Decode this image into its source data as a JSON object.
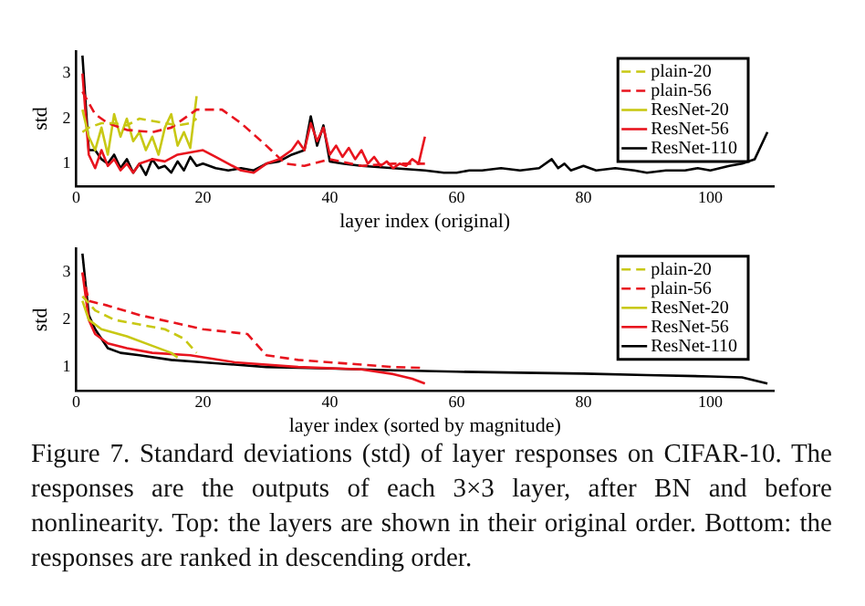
{
  "chart_data": [
    {
      "type": "line",
      "xlabel": "layer index (original)",
      "ylabel": "std",
      "xlim": [
        0,
        110
      ],
      "xticks": [
        0,
        20,
        40,
        60,
        80,
        100
      ],
      "ylim": [
        0.5,
        3.5
      ],
      "yticks": [
        1,
        2,
        3
      ],
      "grid": false,
      "legend": "top right",
      "marker": "none",
      "series": [
        {
          "name": "plain-20",
          "color": "#c8c814",
          "line_style": "dashed",
          "x": [
            1,
            2,
            4,
            6,
            8,
            10,
            12,
            14,
            16,
            18,
            19
          ],
          "values": [
            1.7,
            1.8,
            1.9,
            1.9,
            1.85,
            2.0,
            1.95,
            1.9,
            1.85,
            1.9,
            2.0
          ]
        },
        {
          "name": "plain-56",
          "color": "#e8141e",
          "line_style": "dashed",
          "x": [
            1,
            3,
            5,
            8,
            12,
            15,
            19,
            21,
            23,
            26,
            30,
            33,
            36,
            40,
            45,
            50,
            55
          ],
          "values": [
            2.6,
            2.1,
            1.9,
            1.75,
            1.7,
            1.8,
            2.2,
            2.2,
            2.2,
            1.9,
            1.4,
            1.0,
            0.95,
            1.1,
            0.95,
            1.0,
            1.0
          ]
        },
        {
          "name": "ResNet-20",
          "color": "#c8c814",
          "line_style": "solid",
          "x": [
            1,
            2,
            3,
            4,
            5,
            6,
            7,
            8,
            9,
            10,
            11,
            12,
            13,
            14,
            15,
            16,
            17,
            18,
            19
          ],
          "values": [
            2.2,
            1.6,
            1.3,
            1.8,
            1.2,
            2.1,
            1.6,
            2.0,
            1.5,
            1.7,
            1.3,
            1.6,
            1.2,
            1.8,
            2.1,
            1.4,
            1.7,
            1.35,
            2.5
          ]
        },
        {
          "name": "ResNet-56",
          "color": "#e8141e",
          "line_style": "solid",
          "x": [
            1,
            2,
            3,
            4,
            5,
            6,
            7,
            8,
            9,
            10,
            12,
            14,
            16,
            18,
            20,
            22,
            24,
            26,
            28,
            30,
            32,
            34,
            35,
            36,
            37,
            38,
            39,
            40,
            41,
            42,
            43,
            44,
            45,
            46,
            47,
            48,
            49,
            50,
            51,
            52,
            53,
            54,
            55
          ],
          "values": [
            3.0,
            1.2,
            0.9,
            1.3,
            0.95,
            1.1,
            0.85,
            1.0,
            0.8,
            1.0,
            1.1,
            1.05,
            1.2,
            1.25,
            1.3,
            1.15,
            1.0,
            0.85,
            0.8,
            1.0,
            1.1,
            1.3,
            1.5,
            1.3,
            1.9,
            1.5,
            1.8,
            1.2,
            1.4,
            1.15,
            1.35,
            1.1,
            1.3,
            1.0,
            1.15,
            0.95,
            1.05,
            0.9,
            1.0,
            0.95,
            1.1,
            1.0,
            1.6
          ]
        },
        {
          "name": "ResNet-110",
          "color": "#000000",
          "line_style": "solid",
          "x": [
            1,
            2,
            3,
            4,
            5,
            6,
            7,
            8,
            9,
            10,
            11,
            12,
            13,
            14,
            15,
            16,
            17,
            18,
            19,
            20,
            22,
            24,
            26,
            28,
            30,
            32,
            34,
            36,
            37,
            38,
            39,
            40,
            42,
            45,
            50,
            55,
            58,
            60,
            62,
            64,
            67,
            70,
            73,
            75,
            76,
            77,
            78,
            80,
            82,
            85,
            88,
            90,
            93,
            96,
            98,
            100,
            103,
            105,
            107,
            109
          ],
          "values": [
            3.4,
            1.3,
            1.3,
            1.1,
            1.0,
            1.2,
            0.9,
            1.1,
            0.8,
            1.0,
            0.75,
            1.1,
            0.9,
            0.95,
            0.8,
            1.05,
            0.85,
            1.15,
            0.95,
            1.0,
            0.9,
            0.85,
            0.9,
            0.85,
            1.0,
            1.05,
            1.2,
            1.3,
            2.05,
            1.4,
            1.85,
            1.05,
            1.0,
            0.95,
            0.9,
            0.85,
            0.8,
            0.8,
            0.85,
            0.85,
            0.9,
            0.85,
            0.9,
            1.1,
            0.9,
            1.0,
            0.85,
            0.95,
            0.85,
            0.9,
            0.85,
            0.8,
            0.85,
            0.85,
            0.9,
            0.85,
            0.95,
            1.0,
            1.1,
            1.7
          ]
        }
      ]
    },
    {
      "type": "line",
      "xlabel": "layer index (sorted by magnitude)",
      "ylabel": "std",
      "xlim": [
        0,
        110
      ],
      "xticks": [
        0,
        20,
        40,
        60,
        80,
        100
      ],
      "ylim": [
        0.5,
        3.5
      ],
      "yticks": [
        1,
        2,
        3
      ],
      "grid": false,
      "legend": "top right",
      "marker": "none",
      "annotations": [
        "Figure 7. Standard deviations (std) of layer responses on CIFAR-10. The responses are the outputs of each 3×3 layer, after BN and before nonlinearity. Top: the layers are shown in their original order. Bottom: the responses are ranked in descending order."
      ],
      "series": [
        {
          "name": "plain-20",
          "color": "#c8c814",
          "line_style": "dashed",
          "x": [
            1,
            3,
            6,
            10,
            14,
            17,
            19
          ],
          "values": [
            2.5,
            2.2,
            2.0,
            1.9,
            1.8,
            1.6,
            1.3
          ]
        },
        {
          "name": "plain-56",
          "color": "#e8141e",
          "line_style": "dashed",
          "x": [
            1,
            2,
            5,
            10,
            15,
            20,
            27,
            30,
            35,
            40,
            45,
            50,
            55
          ],
          "values": [
            3.0,
            2.4,
            2.3,
            2.1,
            1.95,
            1.8,
            1.7,
            1.25,
            1.15,
            1.1,
            1.05,
            1.0,
            0.98
          ]
        },
        {
          "name": "ResNet-20",
          "color": "#c8c814",
          "line_style": "solid",
          "x": [
            1,
            2,
            4,
            8,
            12,
            15,
            16
          ],
          "values": [
            2.4,
            2.0,
            1.8,
            1.65,
            1.45,
            1.3,
            1.2
          ]
        },
        {
          "name": "ResNet-56",
          "color": "#e8141e",
          "line_style": "solid",
          "x": [
            1,
            2,
            3,
            5,
            8,
            12,
            18,
            25,
            35,
            45,
            50,
            53,
            55
          ],
          "values": [
            3.0,
            2.0,
            1.7,
            1.5,
            1.4,
            1.3,
            1.25,
            1.1,
            1.0,
            0.95,
            0.85,
            0.75,
            0.65
          ]
        },
        {
          "name": "ResNet-110",
          "color": "#000000",
          "line_style": "solid",
          "x": [
            1,
            2,
            3,
            5,
            7,
            10,
            15,
            20,
            30,
            40,
            50,
            60,
            70,
            80,
            90,
            100,
            105,
            109
          ],
          "values": [
            3.4,
            2.1,
            1.8,
            1.4,
            1.3,
            1.25,
            1.15,
            1.1,
            1.0,
            0.97,
            0.93,
            0.9,
            0.88,
            0.86,
            0.83,
            0.8,
            0.78,
            0.65
          ]
        }
      ]
    }
  ]
}
